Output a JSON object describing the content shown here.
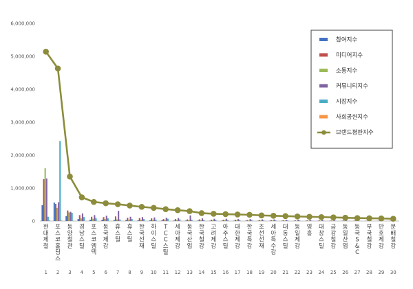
{
  "chart_data": {
    "type": "bar",
    "ylim": [
      0,
      6000000
    ],
    "y_ticks": [
      "0",
      "1,000,000",
      "2,000,000",
      "3,000,000",
      "4,000,000",
      "5,000,000",
      "6,000,000"
    ],
    "grid": false,
    "legend_position": "top-right",
    "categories": [
      "현대제철",
      "포스코홀딩스",
      "동양철관",
      "경남스틸",
      "포스코엠텍",
      "동국제강",
      "휴스틸",
      "휴스틸",
      "한국선재",
      "하이스틸",
      "TCC스틸",
      "세아제강",
      "동국산업",
      "한국철강",
      "고려제강",
      "아주스틸",
      "대한제강",
      "한국특강",
      "조선선재",
      "세아특수강",
      "대동스틸",
      "동일제강",
      "영흥",
      "대창스틸",
      "금강철강",
      "동일산업",
      "동국S&C",
      "부국철강",
      "만호제강",
      "문배철강"
    ],
    "ranks": [
      "1",
      "2",
      "3",
      "4",
      "5",
      "6",
      "7",
      "8",
      "9",
      "10",
      "11",
      "12",
      "13",
      "14",
      "15",
      "16",
      "17",
      "18",
      "19",
      "20",
      "21",
      "22",
      "23",
      "24",
      "25",
      "26",
      "27",
      "28",
      "29",
      "30"
    ],
    "series": [
      {
        "name": "참여지수",
        "color": "#4472c4",
        "values": [
          480000,
          560000,
          150000,
          60000,
          40000,
          40000,
          30000,
          30000,
          20000,
          20000,
          20000,
          15000,
          15000,
          15000,
          10000,
          10000,
          10000,
          10000,
          8000,
          8000,
          8000,
          6000,
          6000,
          6000,
          5000,
          5000,
          5000,
          5000,
          4000,
          4000
        ]
      },
      {
        "name": "미디어지수",
        "color": "#c0504d",
        "values": [
          1270000,
          520000,
          320000,
          180000,
          130000,
          120000,
          140000,
          100000,
          90000,
          80000,
          60000,
          60000,
          50000,
          50000,
          40000,
          40000,
          40000,
          30000,
          30000,
          30000,
          25000,
          20000,
          20000,
          20000,
          15000,
          15000,
          15000,
          10000,
          10000,
          10000
        ]
      },
      {
        "name": "소통지수",
        "color": "#9bbb59",
        "values": [
          1600000,
          400000,
          260000,
          80000,
          70000,
          60000,
          50000,
          40000,
          40000,
          40000,
          30000,
          30000,
          20000,
          20000,
          20000,
          20000,
          20000,
          15000,
          15000,
          15000,
          10000,
          10000,
          10000,
          10000,
          8000,
          8000,
          8000,
          8000,
          6000,
          6000
        ]
      },
      {
        "name": "커뮤니티지수",
        "color": "#8064a2",
        "values": [
          1290000,
          570000,
          280000,
          230000,
          180000,
          160000,
          310000,
          130000,
          120000,
          110000,
          100000,
          90000,
          170000,
          80000,
          70000,
          70000,
          60000,
          60000,
          50000,
          50000,
          40000,
          40000,
          40000,
          30000,
          30000,
          30000,
          30000,
          20000,
          20000,
          20000
        ]
      },
      {
        "name": "시장지수",
        "color": "#4bacc6",
        "values": [
          130000,
          2430000,
          250000,
          120000,
          90000,
          80000,
          50000,
          60000,
          60000,
          40000,
          70000,
          50000,
          40000,
          40000,
          30000,
          30000,
          30000,
          30000,
          20000,
          20000,
          20000,
          20000,
          15000,
          15000,
          10000,
          10000,
          10000,
          10000,
          8000,
          8000
        ]
      },
      {
        "name": "사회공헌지수",
        "color": "#f79646",
        "values": [
          30000,
          20000,
          10000,
          5000,
          5000,
          5000,
          5000,
          3000,
          3000,
          3000,
          3000,
          3000,
          2000,
          2000,
          2000,
          2000,
          2000,
          2000,
          1000,
          1000,
          1000,
          1000,
          1000,
          1000,
          1000,
          1000,
          1000,
          1000,
          1000,
          1000
        ]
      }
    ],
    "line_series": {
      "name": "브랜드평판지수",
      "color": "#8c8c3c",
      "values": [
        5140000,
        4630000,
        1350000,
        720000,
        580000,
        540000,
        510000,
        470000,
        430000,
        400000,
        360000,
        330000,
        300000,
        240000,
        220000,
        210000,
        200000,
        190000,
        170000,
        160000,
        150000,
        140000,
        130000,
        120000,
        110000,
        100000,
        90000,
        85000,
        80000,
        70000
      ]
    }
  }
}
